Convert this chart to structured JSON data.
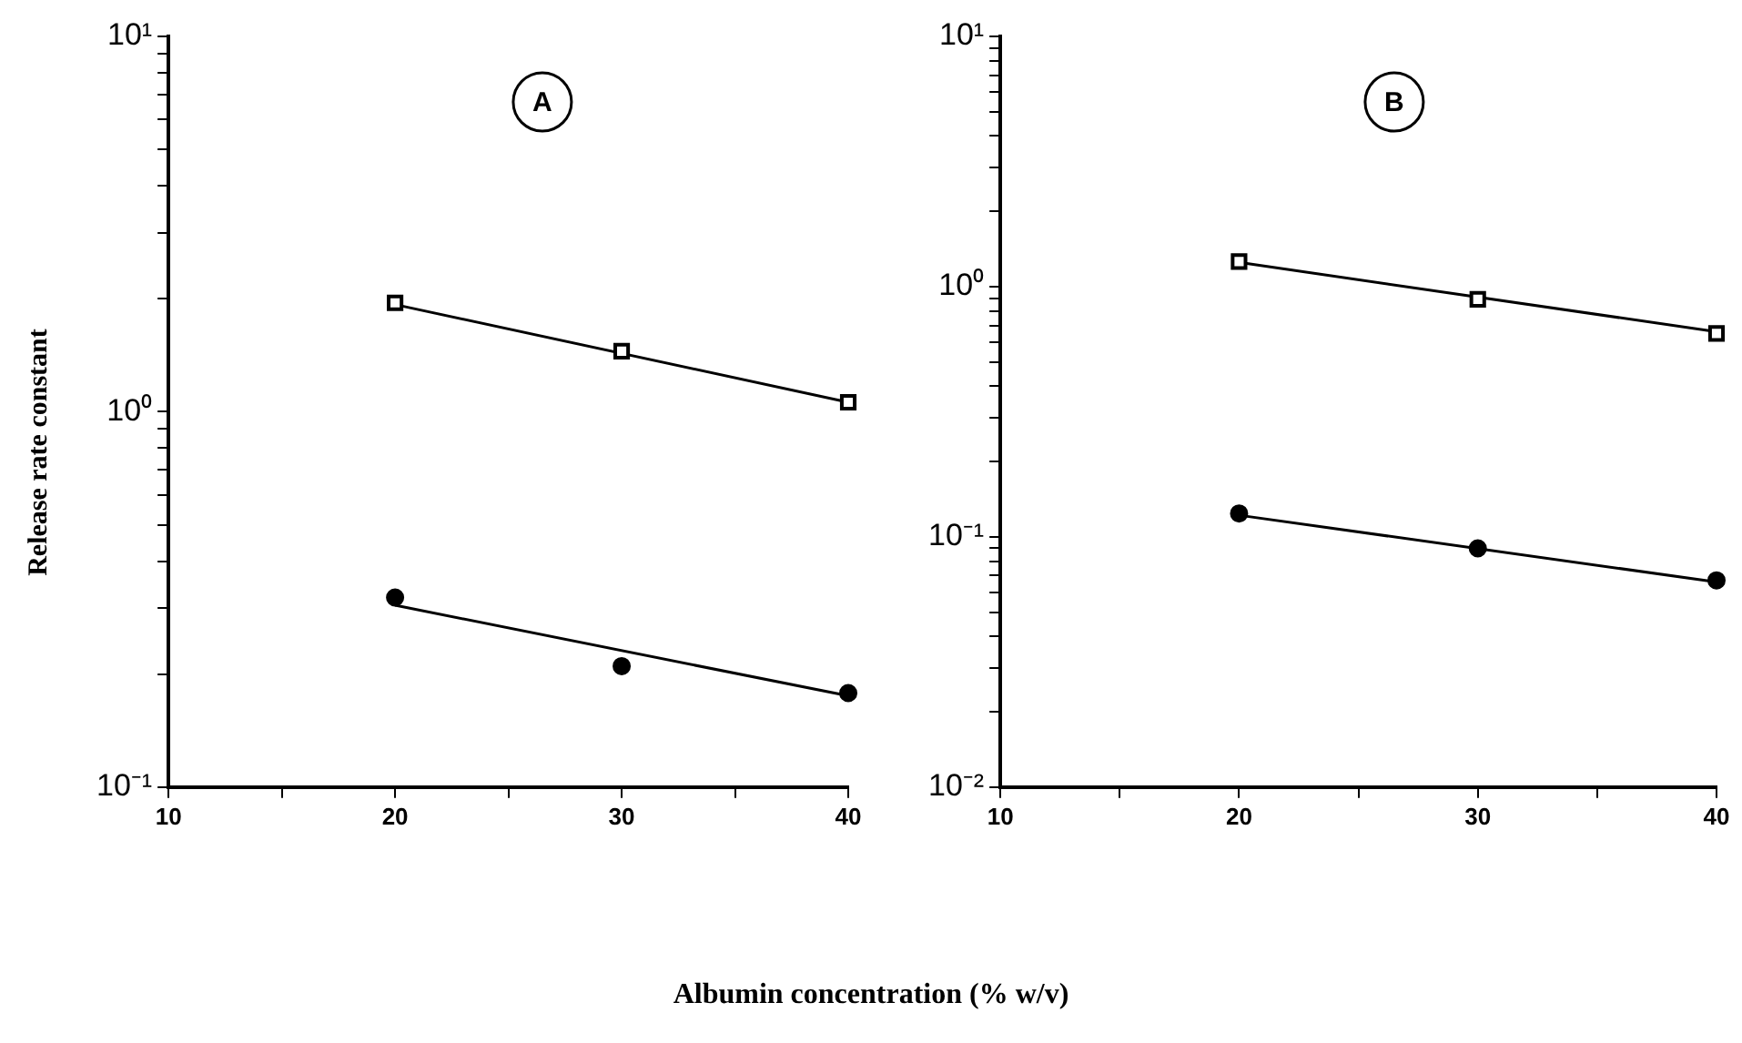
{
  "chart_data": [
    {
      "type": "scatter",
      "ylabel": "Release rate constant",
      "xlabel": "Albumin concentration (% w/v)",
      "annotations": [
        "A"
      ],
      "log": "y",
      "grid": false,
      "legend": false,
      "xlim": [
        10,
        40
      ],
      "xticks": [
        10,
        {
          "value": 15,
          "label": null
        },
        20,
        {
          "value": 25,
          "label": null
        },
        30,
        {
          "value": 35,
          "label": null
        },
        40
      ],
      "ylim": [
        0.1,
        10
      ],
      "yticks": [
        {
          "value": 0.1,
          "label": "10⁻¹"
        },
        {
          "value": 0.2,
          "label": null
        },
        {
          "value": 0.3,
          "label": null
        },
        {
          "value": 0.4,
          "label": null
        },
        {
          "value": 0.5,
          "label": null
        },
        {
          "value": 0.6,
          "label": null
        },
        {
          "value": 0.7,
          "label": null
        },
        {
          "value": 0.8,
          "label": null
        },
        {
          "value": 0.9,
          "label": null
        },
        {
          "value": 1,
          "label": "10⁰"
        },
        {
          "value": 2,
          "label": null
        },
        {
          "value": 3,
          "label": null
        },
        {
          "value": 4,
          "label": null
        },
        {
          "value": 5,
          "label": null
        },
        {
          "value": 6,
          "label": null
        },
        {
          "value": 7,
          "label": null
        },
        {
          "value": 8,
          "label": null
        },
        {
          "value": 9,
          "label": null
        },
        {
          "value": 10,
          "label": "10¹"
        }
      ],
      "series": [
        {
          "type": "scatter",
          "marker": "square",
          "color": "#000000",
          "x": [
            20,
            30,
            40
          ],
          "values": [
            1.95,
            1.45,
            1.06
          ]
        },
        {
          "type": "scatter",
          "marker": "circle",
          "color": "#000000",
          "x": [
            20,
            30,
            40
          ],
          "values": [
            0.32,
            0.21,
            0.178
          ]
        },
        {
          "type": "line",
          "marker": "none",
          "color": "#000000",
          "x": [
            20,
            40
          ],
          "values": [
            1.93,
            1.06
          ]
        },
        {
          "type": "line",
          "marker": "none",
          "color": "#000000",
          "x": [
            20,
            40
          ],
          "values": [
            0.305,
            0.175
          ]
        }
      ]
    },
    {
      "type": "scatter",
      "annotations": [
        "B"
      ],
      "log": "y",
      "grid": false,
      "legend": false,
      "xlim": [
        10,
        40
      ],
      "xticks": [
        10,
        {
          "value": 15,
          "label": null
        },
        20,
        {
          "value": 25,
          "label": null
        },
        30,
        {
          "value": 35,
          "label": null
        },
        40
      ],
      "ylim": [
        0.01,
        10
      ],
      "yticks": [
        {
          "value": 0.01,
          "label": "10⁻²"
        },
        {
          "value": 0.02,
          "label": null
        },
        {
          "value": 0.03,
          "label": null
        },
        {
          "value": 0.04,
          "label": null
        },
        {
          "value": 0.05,
          "label": null
        },
        {
          "value": 0.06,
          "label": null
        },
        {
          "value": 0.07,
          "label": null
        },
        {
          "value": 0.08,
          "label": null
        },
        {
          "value": 0.09,
          "label": null
        },
        {
          "value": 0.1,
          "label": "10⁻¹"
        },
        {
          "value": 0.2,
          "label": null
        },
        {
          "value": 0.3,
          "label": null
        },
        {
          "value": 0.4,
          "label": null
        },
        {
          "value": 0.5,
          "label": null
        },
        {
          "value": 0.6,
          "label": null
        },
        {
          "value": 0.7,
          "label": null
        },
        {
          "value": 0.8,
          "label": null
        },
        {
          "value": 0.9,
          "label": null
        },
        {
          "value": 1,
          "label": "10⁰"
        },
        {
          "value": 2,
          "label": null
        },
        {
          "value": 3,
          "label": null
        },
        {
          "value": 4,
          "label": null
        },
        {
          "value": 5,
          "label": null
        },
        {
          "value": 6,
          "label": null
        },
        {
          "value": 7,
          "label": null
        },
        {
          "value": 8,
          "label": null
        },
        {
          "value": 9,
          "label": null
        },
        {
          "value": 10,
          "label": "10¹"
        }
      ],
      "series": [
        {
          "type": "scatter",
          "marker": "square",
          "color": "#000000",
          "x": [
            20,
            30,
            40
          ],
          "values": [
            1.26,
            0.89,
            0.65
          ]
        },
        {
          "type": "scatter",
          "marker": "circle",
          "color": "#000000",
          "x": [
            20,
            30,
            40
          ],
          "values": [
            0.124,
            0.09,
            0.067
          ]
        },
        {
          "type": "line",
          "marker": "none",
          "color": "#000000",
          "x": [
            20,
            40
          ],
          "values": [
            1.25,
            0.66
          ]
        },
        {
          "type": "line",
          "marker": "none",
          "color": "#000000",
          "x": [
            20,
            40
          ],
          "values": [
            0.122,
            0.066
          ]
        }
      ]
    }
  ]
}
